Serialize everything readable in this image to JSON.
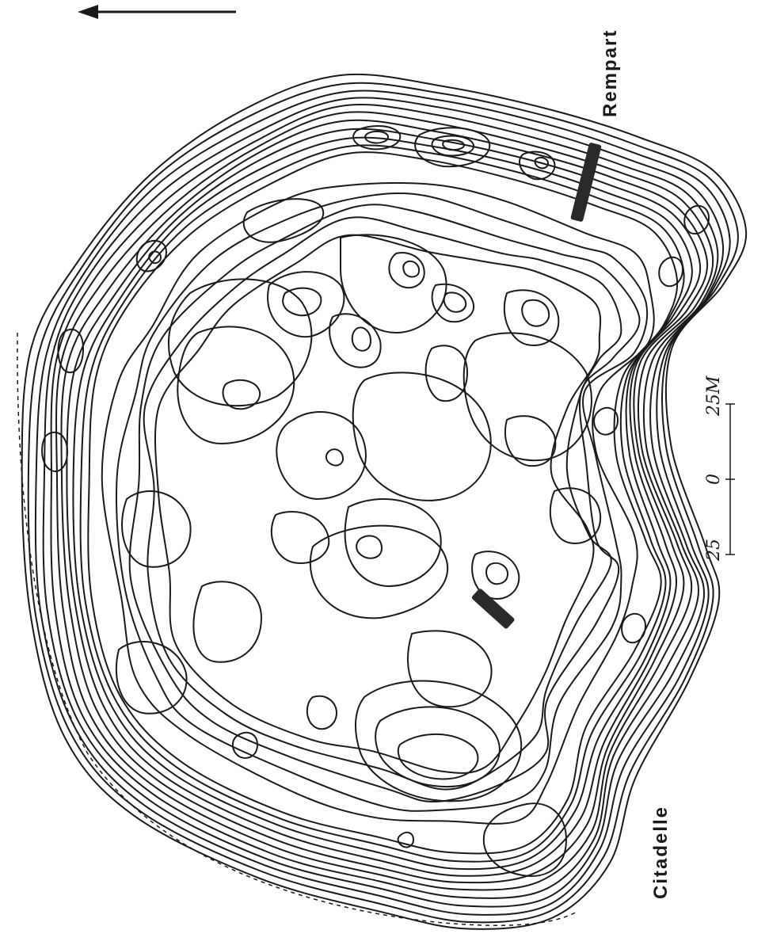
{
  "map": {
    "labels": {
      "rempart": "Rempart",
      "citadelle": "Citadelle"
    },
    "scale": {
      "left": "25",
      "middle": "0",
      "right": "25M"
    },
    "north_arrow": "arrow-left-icon",
    "colors": {
      "ink": "#1a1a1a",
      "paper": "#ffffff"
    }
  }
}
